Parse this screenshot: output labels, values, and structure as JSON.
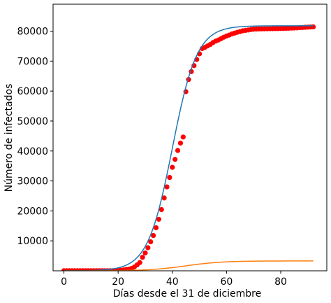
{
  "chart_data": {
    "type": "scatter",
    "title": "",
    "xlabel": "Días desde el 31 de diciembre",
    "ylabel": "Número de infectados",
    "xlim": [
      -4,
      97
    ],
    "ylim": [
      0,
      89000
    ],
    "x_ticks": [
      0,
      20,
      40,
      60,
      80
    ],
    "y_ticks": [
      10000,
      20000,
      30000,
      40000,
      50000,
      60000,
      70000,
      80000
    ],
    "grid": false,
    "legend": "none",
    "series": [
      {
        "kind": "scatter",
        "color": "#ff0000",
        "points": [
          [
            0,
            27
          ],
          [
            1,
            27
          ],
          [
            2,
            27
          ],
          [
            3,
            27
          ],
          [
            4,
            27
          ],
          [
            5,
            27
          ],
          [
            6,
            27
          ],
          [
            7,
            27
          ],
          [
            8,
            27
          ],
          [
            9,
            27
          ],
          [
            10,
            27
          ],
          [
            11,
            41
          ],
          [
            12,
            41
          ],
          [
            13,
            41
          ],
          [
            14,
            41
          ],
          [
            15,
            41
          ],
          [
            16,
            41
          ],
          [
            17,
            41
          ],
          [
            18,
            45
          ],
          [
            19,
            62
          ],
          [
            20,
            121
          ],
          [
            21,
            198
          ],
          [
            22,
            291
          ],
          [
            23,
            440
          ],
          [
            24,
            571
          ],
          [
            25,
            830
          ],
          [
            26,
            1287
          ],
          [
            27,
            1975
          ],
          [
            28,
            2744
          ],
          [
            29,
            4515
          ],
          [
            30,
            5974
          ],
          [
            31,
            7711
          ],
          [
            32,
            9692
          ],
          [
            33,
            11791
          ],
          [
            34,
            14380
          ],
          [
            35,
            17205
          ],
          [
            36,
            20440
          ],
          [
            37,
            24324
          ],
          [
            38,
            28018
          ],
          [
            39,
            31161
          ],
          [
            40,
            34546
          ],
          [
            41,
            37198
          ],
          [
            42,
            40171
          ],
          [
            43,
            42638
          ],
          [
            44,
            44653
          ],
          [
            45,
            59804
          ],
          [
            46,
            63851
          ],
          [
            47,
            66492
          ],
          [
            48,
            68500
          ],
          [
            49,
            70548
          ],
          [
            50,
            72436
          ],
          [
            51,
            74185
          ],
          [
            52,
            74576
          ],
          [
            53,
            75077
          ],
          [
            54,
            75550
          ],
          [
            55,
            76200
          ],
          [
            56,
            76677
          ],
          [
            57,
            77037
          ],
          [
            58,
            77500
          ],
          [
            59,
            77975
          ],
          [
            60,
            78389
          ],
          [
            61,
            78700
          ],
          [
            62,
            79074
          ],
          [
            63,
            79356
          ],
          [
            64,
            79629
          ],
          [
            65,
            79862
          ],
          [
            66,
            80124
          ],
          [
            67,
            80264
          ],
          [
            68,
            80389
          ],
          [
            69,
            80524
          ],
          [
            70,
            80651
          ],
          [
            71,
            80695
          ],
          [
            72,
            80735
          ],
          [
            73,
            80754
          ],
          [
            74,
            80778
          ],
          [
            75,
            80793
          ],
          [
            76,
            80813
          ],
          [
            77,
            80824
          ],
          [
            78,
            80844
          ],
          [
            79,
            80860
          ],
          [
            80,
            80881
          ],
          [
            81,
            80894
          ],
          [
            82,
            80928
          ],
          [
            83,
            80967
          ],
          [
            84,
            81008
          ],
          [
            85,
            81054
          ],
          [
            86,
            81093
          ],
          [
            87,
            81171
          ],
          [
            88,
            81218
          ],
          [
            89,
            81285
          ],
          [
            90,
            81340
          ],
          [
            91,
            81394
          ],
          [
            92,
            81439
          ]
        ]
      },
      {
        "kind": "line",
        "color": "#1f77b4",
        "model": "logistic",
        "K": 81800,
        "r": 0.22,
        "x0": 40,
        "x_range": [
          0,
          92
        ]
      },
      {
        "kind": "line",
        "color": "#ff7f0e",
        "model": "logistic",
        "K": 3300,
        "r": 0.15,
        "x0": 45,
        "x_range": [
          0,
          92
        ]
      }
    ]
  }
}
